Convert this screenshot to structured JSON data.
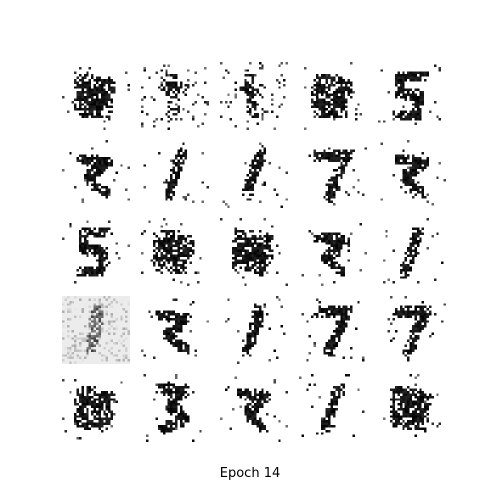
{
  "figure": {
    "caption": "Epoch 14"
  },
  "grid": {
    "rows": 5,
    "cols": 5,
    "samples": [
      {
        "glyph": "blob"
      },
      {
        "glyph": "noise"
      },
      {
        "glyph": "noise"
      },
      {
        "glyph": "blob"
      },
      {
        "glyph": "five"
      },
      {
        "glyph": "squiggle"
      },
      {
        "glyph": "one"
      },
      {
        "glyph": "one"
      },
      {
        "glyph": "seven"
      },
      {
        "glyph": "squiggle"
      },
      {
        "glyph": "five"
      },
      {
        "glyph": "blob"
      },
      {
        "glyph": "blob"
      },
      {
        "glyph": "squiggle"
      },
      {
        "glyph": "one"
      },
      {
        "glyph": "grey-noise"
      },
      {
        "glyph": "squiggle"
      },
      {
        "glyph": "one"
      },
      {
        "glyph": "seven"
      },
      {
        "glyph": "seven"
      },
      {
        "glyph": "blob"
      },
      {
        "glyph": "three"
      },
      {
        "glyph": "squiggle"
      },
      {
        "glyph": "one"
      },
      {
        "glyph": "blob"
      }
    ]
  }
}
